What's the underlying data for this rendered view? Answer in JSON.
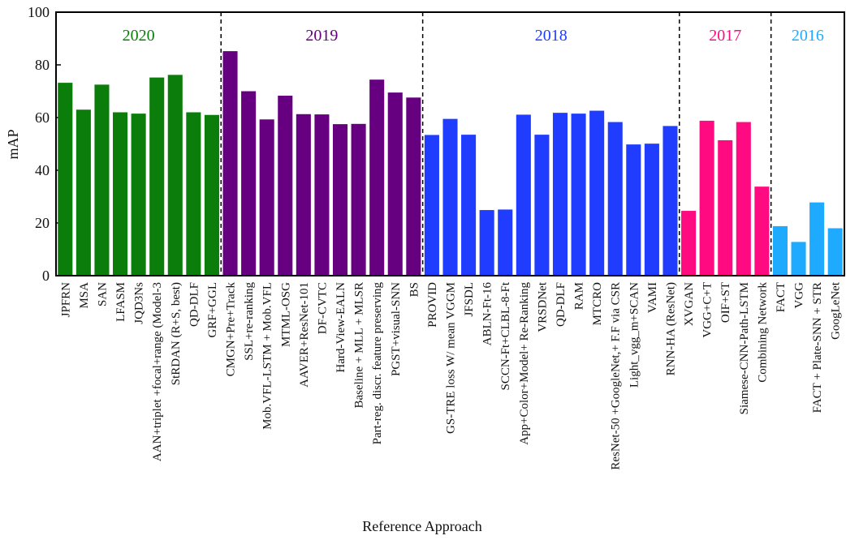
{
  "chart_data": {
    "type": "bar",
    "y_label": "mAP",
    "x_label": "Reference Approach",
    "ylim": [
      0,
      100
    ],
    "yticks": [
      0,
      20,
      40,
      60,
      80,
      100
    ],
    "groups": [
      {
        "label": "2020",
        "color": "#0a7d0a",
        "categories": [
          "JPFRN",
          "MSA",
          "SAN",
          "LFASM",
          "JQD3Ns",
          "AAN+triplet +focal+range (Model-3",
          "StRDAN (R+S, best)",
          "QD-DLF",
          "GRF+GGL"
        ],
        "values": [
          73.2,
          63,
          72.5,
          62,
          61.5,
          75.2,
          76.2,
          62,
          61
        ]
      },
      {
        "label": "2019",
        "color": "#660080",
        "categories": [
          "CMGN+Pre+Track",
          "SSL+re-ranking",
          "Mob.VFL-LSTM + Mob.VFL",
          "MTML-OSG",
          "AAVER+ResNet-101",
          "DF-CVTC",
          "Hard-View-EALN",
          "Baseline + MLL + MLSR",
          "Part-reg. discr. feature preserving",
          "PGST+visual-SNN",
          "BS"
        ],
        "values": [
          85.2,
          70,
          59.3,
          68.3,
          61.3,
          61.2,
          57.5,
          57.6,
          74.4,
          69.5,
          67.6
        ]
      },
      {
        "label": "2018",
        "color": "#1f3cff",
        "categories": [
          "PROVID",
          "GS-TRE loss W/ mean VGGM",
          "JFSDL",
          "ABLN-Ft-16",
          "SCCN-Ft+CLBL-8-Ft",
          "App+Color+Model+ Re-Ranking",
          "VRSDNet",
          "QD-DLF",
          "RAM",
          "MTCRO",
          "ResNet-50 +GoogleNet,+ F.F via CSR",
          "Light_vgg_m+SCAN",
          "VAMI",
          "RNN-HA (ResNet)"
        ],
        "values": [
          53.4,
          59.5,
          53.5,
          24.9,
          25.1,
          61.1,
          53.5,
          61.8,
          61.5,
          62.6,
          58.3,
          49.8,
          50.1,
          56.8
        ]
      },
      {
        "label": "2017",
        "color": "#ff0a80",
        "categories": [
          "XVGAN",
          "VGG+C+T",
          "OIF+ST",
          "Siamese-CNN-Path-LSTM",
          "Combining Network"
        ],
        "values": [
          24.6,
          58.8,
          51.4,
          58.3,
          33.8
        ]
      },
      {
        "label": "2016",
        "color": "#1eaaff",
        "categories": [
          "FACT",
          "VGG",
          "FACT + Plate-SNN + STR",
          "GoogLeNet"
        ],
        "values": [
          18.8,
          12.8,
          27.8,
          18
        ]
      }
    ]
  }
}
